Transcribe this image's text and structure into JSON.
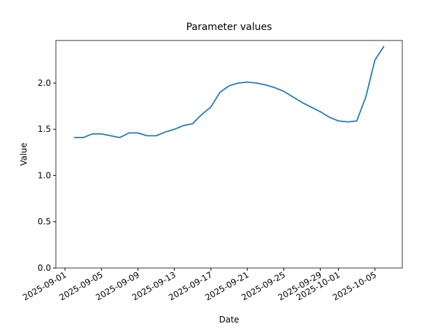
{
  "chart_data": {
    "type": "line",
    "title": "Parameter values",
    "x_label": "Date",
    "y_label": "Value",
    "x": [
      "2025-09-02",
      "2025-09-03",
      "2025-09-04",
      "2025-09-05",
      "2025-09-06",
      "2025-09-07",
      "2025-09-08",
      "2025-09-09",
      "2025-09-10",
      "2025-09-11",
      "2025-09-12",
      "2025-09-13",
      "2025-09-14",
      "2025-09-15",
      "2025-09-16",
      "2025-09-17",
      "2025-09-18",
      "2025-09-19",
      "2025-09-20",
      "2025-09-21",
      "2025-09-22",
      "2025-09-23",
      "2025-09-24",
      "2025-09-25",
      "2025-09-26",
      "2025-09-27",
      "2025-09-28",
      "2025-09-29",
      "2025-09-30",
      "2025-10-01",
      "2025-10-02",
      "2025-10-03",
      "2025-10-04",
      "2025-10-05",
      "2025-10-06"
    ],
    "series": [
      {
        "name": "Value",
        "color": "#1f77b4",
        "values": [
          1.41,
          1.41,
          1.45,
          1.45,
          1.43,
          1.41,
          1.46,
          1.46,
          1.43,
          1.43,
          1.47,
          1.5,
          1.54,
          1.56,
          1.66,
          1.74,
          1.9,
          1.97,
          2.0,
          2.01,
          2.0,
          1.98,
          1.95,
          1.91,
          1.85,
          1.79,
          1.74,
          1.69,
          1.63,
          1.59,
          1.58,
          1.59,
          1.85,
          2.25,
          2.4
        ]
      }
    ],
    "xlim": [
      "2025-08-31",
      "2025-10-08"
    ],
    "xticks": [
      "2025-09-01",
      "2025-09-05",
      "2025-09-09",
      "2025-09-13",
      "2025-09-17",
      "2025-09-21",
      "2025-09-25",
      "2025-09-29",
      "2025-10-01",
      "2025-10-05"
    ],
    "ylim": [
      0,
      2.46
    ],
    "yticks": [
      {
        "value": 0,
        "label": "0.0"
      },
      {
        "value": 0.5,
        "label": "0.5"
      },
      {
        "value": 1,
        "label": "1.0"
      },
      {
        "value": 1.5,
        "label": "1.5"
      },
      {
        "value": 2,
        "label": "2.0"
      }
    ],
    "grid": false
  }
}
